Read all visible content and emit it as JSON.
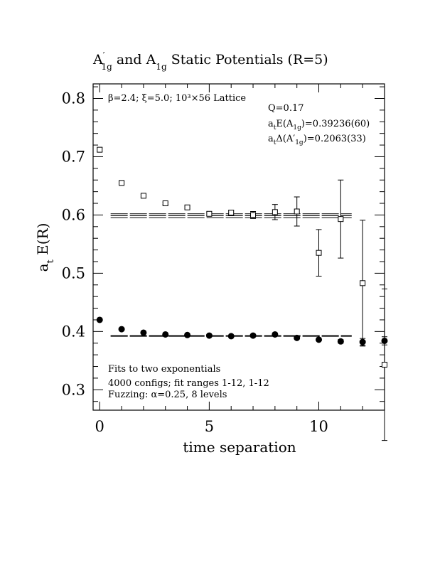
{
  "chart_data": {
    "type": "scatter",
    "title": {
      "pre": "A",
      "prime": "′",
      "sub1": "1g",
      "mid": " and A",
      "sub2": "1g",
      "post": " Static Potentials (R=5)"
    },
    "xlabel": "time separation",
    "ylabel": {
      "main": "a",
      "sub": "t",
      "rest": " E(R)"
    },
    "xlim": [
      -0.3,
      13.0
    ],
    "ylim": [
      0.265,
      0.825
    ],
    "x_ticks": [
      0,
      5,
      10
    ],
    "x_tick_labels": [
      "0",
      "5",
      "10"
    ],
    "y_ticks": [
      0.3,
      0.4,
      0.5,
      0.6,
      0.7,
      0.8
    ],
    "y_tick_labels": [
      "0.3",
      "0.4",
      "0.5",
      "0.6",
      "0.7",
      "0.8"
    ],
    "grid": false,
    "annotations": {
      "lattice": "β=2.4; ξ=5.0; 10³×56 Lattice",
      "q": "Q=0.17",
      "energy_pre": "a",
      "energy_sub": "t",
      "energy_mid": "E(A",
      "energy_sub2": "1g",
      "energy_post": ")=0.39236(60)",
      "delta_pre": "a",
      "delta_sub": "t",
      "delta_mid": "Δ(A′",
      "delta_sub2": "1g",
      "delta_post": ")=0.2063(33)",
      "fits": "Fits to two exponentials",
      "configs": "4000 configs; fit ranges 1-12, 1-12",
      "fuzzing": "Fuzzing: α=0.25, 8 levels"
    },
    "series": [
      {
        "marker": "open-square",
        "points": [
          {
            "x": 0,
            "y": 0.712,
            "err": 0.003
          },
          {
            "x": 1,
            "y": 0.655,
            "err": 0.002
          },
          {
            "x": 2,
            "y": 0.633,
            "err": 0.002
          },
          {
            "x": 3,
            "y": 0.62,
            "err": 0.002
          },
          {
            "x": 4,
            "y": 0.613,
            "err": 0.002
          },
          {
            "x": 5,
            "y": 0.602,
            "err": 0.003
          },
          {
            "x": 6,
            "y": 0.604,
            "err": 0.004
          },
          {
            "x": 7,
            "y": 0.6,
            "err": 0.006
          },
          {
            "x": 8,
            "y": 0.605,
            "err": 0.013
          },
          {
            "x": 9,
            "y": 0.606,
            "err": 0.025
          },
          {
            "x": 10,
            "y": 0.535,
            "err": 0.04
          },
          {
            "x": 11,
            "y": 0.593,
            "err": 0.067
          },
          {
            "x": 12,
            "y": 0.483,
            "err": 0.108
          },
          {
            "x": 13,
            "y": 0.343,
            "err": 0.13
          }
        ]
      },
      {
        "marker": "filled-circle",
        "points": [
          {
            "x": 0,
            "y": 0.42,
            "err": 0.001
          },
          {
            "x": 1,
            "y": 0.404,
            "err": 0.001
          },
          {
            "x": 2,
            "y": 0.398,
            "err": 0.001
          },
          {
            "x": 3,
            "y": 0.395,
            "err": 0.001
          },
          {
            "x": 4,
            "y": 0.394,
            "err": 0.001
          },
          {
            "x": 5,
            "y": 0.393,
            "err": 0.001
          },
          {
            "x": 6,
            "y": 0.392,
            "err": 0.001
          },
          {
            "x": 7,
            "y": 0.393,
            "err": 0.001
          },
          {
            "x": 8,
            "y": 0.395,
            "err": 0.002
          },
          {
            "x": 9,
            "y": 0.389,
            "err": 0.002
          },
          {
            "x": 10,
            "y": 0.386,
            "err": 0.002
          },
          {
            "x": 11,
            "y": 0.383,
            "err": 0.003
          },
          {
            "x": 12,
            "y": 0.382,
            "err": 0.006
          },
          {
            "x": 13,
            "y": 0.384,
            "err": 0.007
          }
        ]
      }
    ],
    "fit_bands": [
      {
        "x_range": [
          0.5,
          11.5
        ],
        "center": 0.5987,
        "halfwidth": 0.0033,
        "color": "#000000"
      },
      {
        "x_range": [
          0.5,
          11.5
        ],
        "center": 0.39236,
        "halfwidth": 0.0006,
        "color": "#000000"
      }
    ]
  }
}
